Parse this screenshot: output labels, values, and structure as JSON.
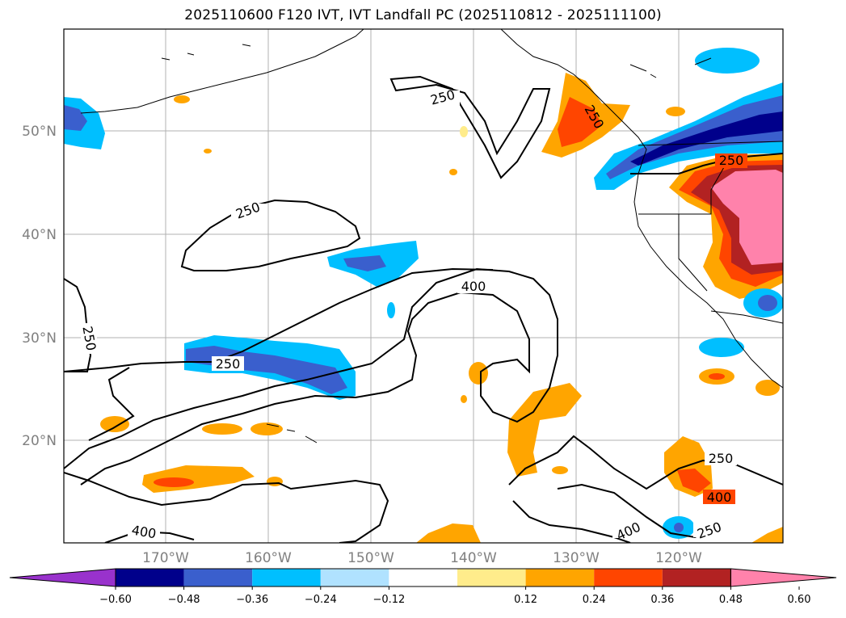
{
  "title": "2025110600 F120 IVT, IVT Landfall PC (2025110812 - 2025111100)",
  "lat_labels": [
    "50°N",
    "40°N",
    "30°N",
    "20°N"
  ],
  "lon_labels": [
    "170°W",
    "160°W",
    "150°W",
    "140°W",
    "130°W",
    "120°W"
  ],
  "contour_labels": [
    "250",
    "250",
    "250",
    "250",
    "400",
    "400",
    "400",
    "250",
    "250",
    "250",
    "400",
    "250"
  ],
  "colorbar": {
    "colors": [
      "#9932cc",
      "#00008b",
      "#3a5fcd",
      "#00bfff",
      "#b0e2ff",
      "#ffffff",
      "#ffec8b",
      "#ffa500",
      "#ff4500",
      "#b22222",
      "#ff82ab"
    ],
    "ticks": [
      "−0.60",
      "−0.48",
      "−0.36",
      "−0.24",
      "−0.12",
      "0.12",
      "0.24",
      "0.36",
      "0.48",
      "0.60"
    ]
  }
}
